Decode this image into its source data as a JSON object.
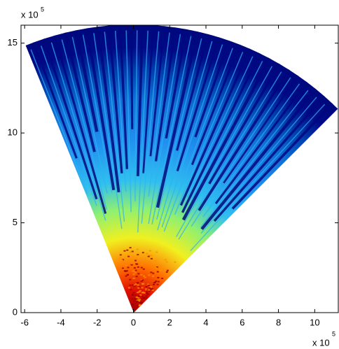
{
  "chart_data": {
    "type": "image",
    "xlim": [
      -6.2,
      11.3
    ],
    "ylim": [
      0,
      16
    ],
    "xticks": [
      -6,
      -4,
      -2,
      0,
      2,
      4,
      6,
      8,
      10
    ],
    "yticks": [
      0,
      5,
      10,
      15
    ],
    "x_multiplier": {
      "base": "x 10",
      "exponent": "5"
    },
    "y_multiplier": {
      "base": "x 10",
      "exponent": "5"
    }
  }
}
